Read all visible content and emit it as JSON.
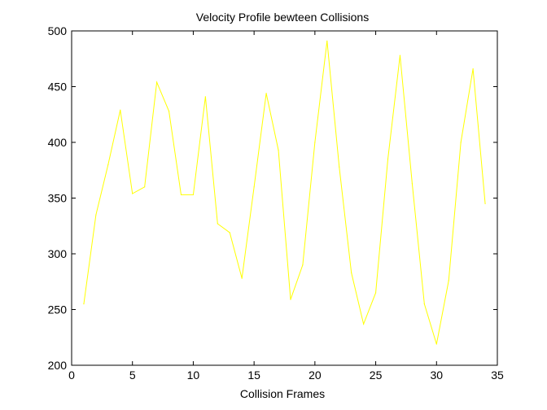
{
  "chart_data": {
    "type": "line",
    "title": "Velocity Profile bewteen Collisions",
    "xlabel": "Collision Frames",
    "ylabel": "",
    "xlim": [
      0,
      35
    ],
    "ylim": [
      200,
      500
    ],
    "xticks": [
      0,
      5,
      10,
      15,
      20,
      25,
      30,
      35
    ],
    "yticks": [
      200,
      250,
      300,
      350,
      400,
      450,
      500
    ],
    "grid": false,
    "legend": "none",
    "series": [
      {
        "color": "#ffff00",
        "x": [
          1,
          2,
          3,
          4,
          5,
          6,
          7,
          8,
          9,
          10,
          11,
          12,
          13,
          14,
          15,
          16,
          17,
          18,
          19,
          20,
          21,
          22,
          23,
          24,
          25,
          26,
          27,
          28,
          29,
          30,
          31,
          32,
          33,
          34
        ],
        "y": [
          255,
          335,
          380,
          429,
          354,
          360,
          454,
          428,
          353,
          353,
          441,
          327,
          319,
          278,
          360,
          444,
          393,
          259,
          290,
          400,
          491,
          378,
          283,
          237,
          265,
          385,
          478,
          363,
          255,
          219,
          276,
          400,
          466,
          345
        ]
      }
    ]
  },
  "colors": {
    "background": "#ffffff",
    "axes": "#000000",
    "series": "#ffff00"
  }
}
